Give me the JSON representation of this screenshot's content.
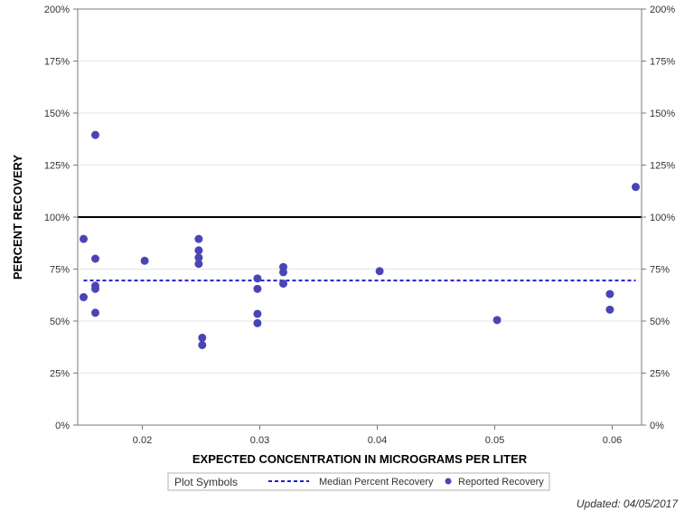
{
  "chart_data": {
    "type": "scatter",
    "xlabel": "EXPECTED CONCENTRATION IN MICROGRAMS PER LITER",
    "ylabel": "PERCENT RECOVERY",
    "xlim": [
      0.0145,
      0.0625
    ],
    "ylim": [
      0,
      200
    ],
    "x_ticks": [
      0.02,
      0.03,
      0.04,
      0.05,
      0.06
    ],
    "x_tick_labels": [
      "0.02",
      "0.03",
      "0.04",
      "0.05",
      "0.06"
    ],
    "y_ticks": [
      0,
      25,
      50,
      75,
      100,
      125,
      150,
      175,
      200
    ],
    "y_tick_labels": [
      "0%",
      "25%",
      "50%",
      "75%",
      "100%",
      "125%",
      "150%",
      "175%",
      "200%"
    ],
    "grid": "horizontal",
    "reference_line": {
      "y": 100,
      "color": "#000000"
    },
    "median_line": {
      "name": "Median Percent Recovery",
      "y": 69.5,
      "x_start": 0.015,
      "x_end": 0.062,
      "color": "#1f1fc8"
    },
    "series": [
      {
        "name": "Reported Recovery",
        "color": "#4a45b5",
        "points": [
          {
            "x": 0.015,
            "y": 89.5
          },
          {
            "x": 0.015,
            "y": 61.5
          },
          {
            "x": 0.016,
            "y": 139.5
          },
          {
            "x": 0.016,
            "y": 80.0
          },
          {
            "x": 0.016,
            "y": 67.0
          },
          {
            "x": 0.016,
            "y": 65.5
          },
          {
            "x": 0.016,
            "y": 54.0
          },
          {
            "x": 0.0202,
            "y": 79.0
          },
          {
            "x": 0.0248,
            "y": 89.5
          },
          {
            "x": 0.0248,
            "y": 84.0
          },
          {
            "x": 0.0248,
            "y": 80.5
          },
          {
            "x": 0.0248,
            "y": 77.5
          },
          {
            "x": 0.0251,
            "y": 42.0
          },
          {
            "x": 0.0251,
            "y": 38.5
          },
          {
            "x": 0.0298,
            "y": 70.5
          },
          {
            "x": 0.0298,
            "y": 65.5
          },
          {
            "x": 0.0298,
            "y": 53.5
          },
          {
            "x": 0.0298,
            "y": 49.0
          },
          {
            "x": 0.032,
            "y": 76.0
          },
          {
            "x": 0.032,
            "y": 73.5
          },
          {
            "x": 0.032,
            "y": 68.0
          },
          {
            "x": 0.0402,
            "y": 74.0
          },
          {
            "x": 0.0502,
            "y": 50.5
          },
          {
            "x": 0.0598,
            "y": 63.0
          },
          {
            "x": 0.0598,
            "y": 55.5
          },
          {
            "x": 0.062,
            "y": 114.5
          }
        ]
      }
    ],
    "legend": {
      "position": "bottom",
      "title": "Plot Symbols",
      "entries": [
        "Median Percent Recovery",
        "Reported Recovery"
      ]
    }
  },
  "footnote": "Updated: 04/05/2017"
}
